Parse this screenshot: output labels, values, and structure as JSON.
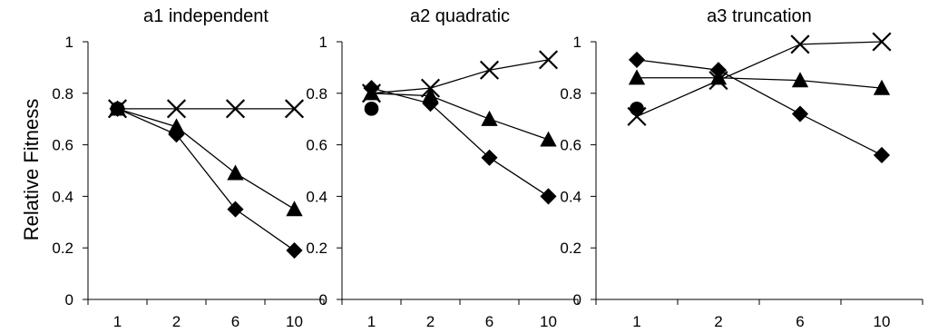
{
  "shared": {
    "ylabel": "Relative Fitness",
    "series_colors": {
      "cross": "#000000",
      "diamond": "#000000",
      "triangle": "#000000",
      "circle": "#000000"
    }
  },
  "chart_data": [
    {
      "type": "line",
      "title": "a1 independent",
      "xlabel": "",
      "ylabel": "Relative Fitness",
      "categories": [
        "1",
        "2",
        "6",
        "10"
      ],
      "ylim": [
        0,
        1
      ],
      "yticks": [
        "0",
        "0.2",
        "0.4",
        "0.6",
        "0.8",
        "1"
      ],
      "grid": false,
      "series": [
        {
          "marker": "cross",
          "values": [
            0.74,
            0.74,
            0.74,
            0.74
          ]
        },
        {
          "marker": "diamond",
          "values": [
            0.74,
            0.64,
            0.35,
            0.19
          ]
        },
        {
          "marker": "triangle",
          "values": [
            0.74,
            0.67,
            0.49,
            0.35
          ]
        },
        {
          "marker": "circle",
          "values": [
            0.74,
            null,
            null,
            null
          ]
        }
      ]
    },
    {
      "type": "line",
      "title": "a2 quadratic",
      "xlabel": "",
      "ylabel": "",
      "categories": [
        "1",
        "2",
        "6",
        "10"
      ],
      "ylim": [
        0,
        1
      ],
      "yticks": [
        "0",
        "0.2",
        "0.4",
        "0.6",
        "0.8",
        "1"
      ],
      "grid": false,
      "series": [
        {
          "marker": "cross",
          "values": [
            0.8,
            0.82,
            0.89,
            0.93
          ]
        },
        {
          "marker": "diamond",
          "values": [
            0.82,
            0.76,
            0.55,
            0.4
          ]
        },
        {
          "marker": "triangle",
          "values": [
            0.8,
            0.79,
            0.7,
            0.62
          ]
        },
        {
          "marker": "circle",
          "values": [
            0.74,
            null,
            null,
            null
          ]
        }
      ]
    },
    {
      "type": "line",
      "title": "a3 truncation",
      "xlabel": "",
      "ylabel": "",
      "categories": [
        "1",
        "2",
        "6",
        "10"
      ],
      "ylim": [
        0,
        1
      ],
      "yticks": [
        "0",
        "0.2",
        "0.4",
        "0.6",
        "0.8",
        "1"
      ],
      "grid": false,
      "series": [
        {
          "marker": "cross",
          "values": [
            0.71,
            0.85,
            0.99,
            1.0
          ]
        },
        {
          "marker": "diamond",
          "values": [
            0.93,
            0.89,
            0.72,
            0.56
          ]
        },
        {
          "marker": "triangle",
          "values": [
            0.86,
            0.86,
            0.85,
            0.82
          ]
        },
        {
          "marker": "circle",
          "values": [
            0.74,
            null,
            null,
            null
          ]
        }
      ]
    }
  ]
}
